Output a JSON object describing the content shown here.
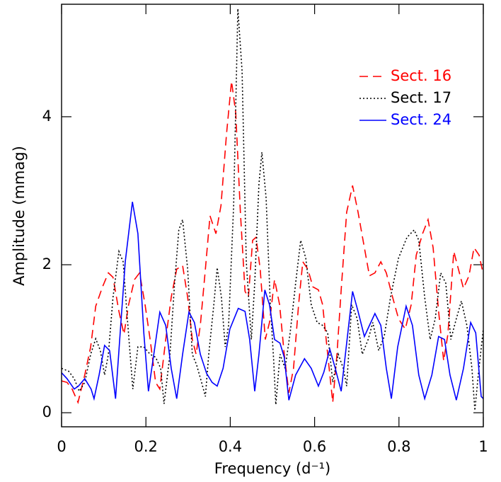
{
  "chart_data": {
    "type": "line",
    "xlabel": "Frequency (d⁻¹)",
    "ylabel": "Amplitude (mmag)",
    "xlim": [
      0,
      1
    ],
    "ylim": [
      -0.19,
      5.52
    ],
    "xticks": [
      0,
      0.2,
      0.4,
      0.6,
      0.8,
      1
    ],
    "yticks": [
      0,
      2,
      4
    ],
    "legend": "upper right",
    "series": [
      {
        "name": "Sect. 16",
        "color": "#ff0000",
        "dash": "dashed",
        "x": [
          0,
          0.013,
          0.025,
          0.039,
          0.055,
          0.069,
          0.081,
          0.097,
          0.111,
          0.122,
          0.136,
          0.148,
          0.159,
          0.173,
          0.185,
          0.198,
          0.21,
          0.223,
          0.233,
          0.247,
          0.26,
          0.273,
          0.287,
          0.299,
          0.31,
          0.319,
          0.329,
          0.341,
          0.352,
          0.366,
          0.378,
          0.391,
          0.403,
          0.413,
          0.424,
          0.435,
          0.443,
          0.453,
          0.461,
          0.471,
          0.483,
          0.493,
          0.505,
          0.517,
          0.528,
          0.539,
          0.55,
          0.562,
          0.572,
          0.584,
          0.596,
          0.609,
          0.619,
          0.631,
          0.643,
          0.653,
          0.663,
          0.676,
          0.69,
          0.703,
          0.718,
          0.73,
          0.743,
          0.757,
          0.77,
          0.785,
          0.799,
          0.815,
          0.829,
          0.841,
          0.856,
          0.869,
          0.881,
          0.894,
          0.906,
          0.916,
          0.93,
          0.941,
          0.953,
          0.966,
          0.978,
          0.99,
          1
        ],
        "values": [
          0.43,
          0.41,
          0.32,
          0.14,
          0.51,
          0.89,
          1.44,
          1.7,
          1.89,
          1.83,
          1.37,
          1.06,
          1.46,
          1.8,
          1.89,
          1.46,
          0.99,
          0.41,
          0.32,
          0.99,
          1.56,
          1.94,
          1.99,
          1.56,
          0.99,
          0.79,
          1.18,
          1.94,
          2.66,
          2.42,
          2.8,
          3.76,
          4.48,
          4.05,
          2.71,
          1.64,
          1.56,
          2.33,
          2.37,
          1.94,
          0.99,
          1.22,
          1.8,
          1.46,
          0.79,
          0.27,
          0.6,
          1.46,
          2.04,
          1.94,
          1.7,
          1.66,
          1.46,
          0.79,
          0.14,
          0.79,
          1.66,
          2.71,
          3.07,
          2.71,
          2.23,
          1.85,
          1.89,
          2.04,
          1.89,
          1.56,
          1.27,
          1.13,
          1.46,
          2.13,
          2.42,
          2.61,
          2.23,
          1.37,
          0.7,
          1.06,
          2.18,
          1.94,
          1.68,
          1.85,
          2.23,
          2.13,
          1.87
        ]
      },
      {
        "name": "Sect. 17",
        "color": "#000000",
        "dash": "dotted",
        "x": [
          0,
          0.017,
          0.03,
          0.042,
          0.055,
          0.069,
          0.081,
          0.092,
          0.102,
          0.111,
          0.122,
          0.136,
          0.146,
          0.156,
          0.169,
          0.181,
          0.195,
          0.21,
          0.223,
          0.235,
          0.243,
          0.257,
          0.268,
          0.278,
          0.287,
          0.299,
          0.31,
          0.32,
          0.332,
          0.341,
          0.349,
          0.361,
          0.369,
          0.379,
          0.388,
          0.396,
          0.408,
          0.418,
          0.428,
          0.438,
          0.45,
          0.458,
          0.468,
          0.475,
          0.485,
          0.495,
          0.503,
          0.508,
          0.518,
          0.53,
          0.542,
          0.555,
          0.567,
          0.579,
          0.592,
          0.606,
          0.619,
          0.631,
          0.643,
          0.656,
          0.668,
          0.676,
          0.688,
          0.701,
          0.713,
          0.727,
          0.738,
          0.752,
          0.765,
          0.78,
          0.799,
          0.819,
          0.836,
          0.847,
          0.861,
          0.874,
          0.886,
          0.899,
          0.911,
          0.923,
          0.936,
          0.948,
          0.961,
          0.973,
          0.98,
          0.988,
          1
        ],
        "values": [
          0.6,
          0.56,
          0.46,
          0.29,
          0.41,
          0.79,
          1.0,
          0.84,
          0.51,
          0.79,
          1.56,
          2.18,
          2.04,
          1.27,
          0.32,
          0.89,
          0.89,
          0.79,
          0.75,
          0.6,
          0.12,
          0.79,
          1.75,
          2.47,
          2.61,
          1.94,
          0.79,
          0.65,
          0.41,
          0.22,
          0.79,
          1.46,
          1.96,
          1.56,
          0.89,
          1.18,
          2.8,
          5.46,
          4.62,
          2.04,
          0.99,
          1.75,
          3.09,
          3.52,
          2.9,
          1.46,
          0.7,
          0.11,
          0.79,
          0.6,
          1.08,
          1.75,
          2.33,
          2.09,
          1.46,
          1.22,
          1.18,
          1.08,
          0.41,
          0.79,
          0.6,
          0.36,
          1.46,
          1.27,
          0.79,
          0.99,
          1.22,
          0.84,
          1.03,
          1.56,
          2.09,
          2.37,
          2.47,
          2.33,
          1.56,
          0.99,
          1.27,
          1.89,
          1.75,
          0.99,
          1.27,
          1.51,
          1.18,
          0.6,
          0.03,
          0.51,
          1.13
        ]
      },
      {
        "name": "Sect. 24",
        "color": "#0000ff",
        "dash": "solid",
        "x": [
          0,
          0.013,
          0.03,
          0.04,
          0.055,
          0.07,
          0.077,
          0.089,
          0.102,
          0.114,
          0.128,
          0.139,
          0.151,
          0.168,
          0.181,
          0.195,
          0.206,
          0.22,
          0.233,
          0.247,
          0.26,
          0.273,
          0.287,
          0.302,
          0.315,
          0.329,
          0.344,
          0.357,
          0.369,
          0.383,
          0.399,
          0.419,
          0.435,
          0.446,
          0.458,
          0.468,
          0.482,
          0.493,
          0.505,
          0.518,
          0.528,
          0.539,
          0.555,
          0.576,
          0.592,
          0.609,
          0.622,
          0.636,
          0.649,
          0.663,
          0.676,
          0.69,
          0.703,
          0.718,
          0.73,
          0.743,
          0.757,
          0.77,
          0.782,
          0.797,
          0.817,
          0.832,
          0.847,
          0.861,
          0.878,
          0.894,
          0.908,
          0.921,
          0.936,
          0.953,
          0.97,
          0.982,
          0.995,
          1
        ],
        "values": [
          0.54,
          0.46,
          0.32,
          0.36,
          0.46,
          0.32,
          0.19,
          0.51,
          0.91,
          0.84,
          0.19,
          1.08,
          2.04,
          2.85,
          2.42,
          1.08,
          0.29,
          0.84,
          1.36,
          1.18,
          0.6,
          0.19,
          0.79,
          1.36,
          1.22,
          0.79,
          0.53,
          0.41,
          0.36,
          0.6,
          1.13,
          1.41,
          1.37,
          0.99,
          0.29,
          0.79,
          1.66,
          1.46,
          0.99,
          0.94,
          0.75,
          0.17,
          0.51,
          0.73,
          0.6,
          0.36,
          0.55,
          0.86,
          0.6,
          0.29,
          0.94,
          1.64,
          1.37,
          1.03,
          1.18,
          1.34,
          1.18,
          0.6,
          0.19,
          0.89,
          1.44,
          1.18,
          0.51,
          0.19,
          0.51,
          1.03,
          0.99,
          0.51,
          0.17,
          0.6,
          1.22,
          1.08,
          0.22,
          0.19
        ]
      }
    ]
  }
}
